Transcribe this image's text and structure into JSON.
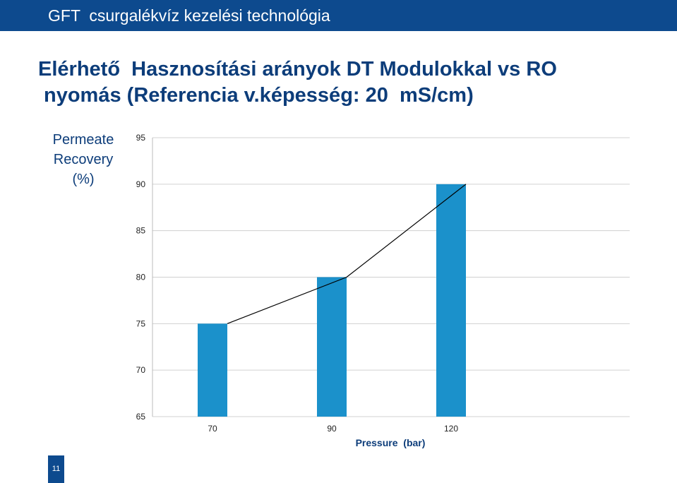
{
  "header": {
    "title": "GFT  csurgalékvíz kezelési technológia"
  },
  "slide": {
    "title_line1": "Elérhető  Hasznosítási arányok DT Modulokkal vs RO",
    "title_line2": "nyomás (Referencia v.képesség: 20  mS/cm)",
    "page_number": "11"
  },
  "colors": {
    "header": "#0d4a8e",
    "bar": "#1b91cb",
    "title": "#0d3d7a"
  },
  "chart_data": {
    "type": "bar",
    "categories": [
      "70",
      "90",
      "120"
    ],
    "values": [
      75,
      80,
      90
    ],
    "ylim": [
      65,
      95
    ],
    "yticks": [
      "95",
      "90",
      "85",
      "80",
      "75",
      "70",
      "65"
    ],
    "ylabel": [
      "Permeate",
      "Recovery",
      "(%)"
    ],
    "xlabel": "Pressure  (bar)",
    "trend_line": true,
    "grid": true
  }
}
